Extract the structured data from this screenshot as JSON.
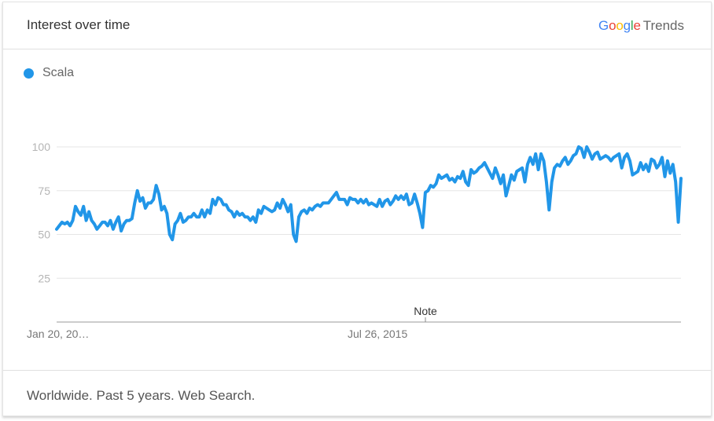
{
  "header": {
    "title": "Interest over time",
    "logo": {
      "letters": [
        {
          "ch": "G",
          "color": "#4285F4"
        },
        {
          "ch": "o",
          "color": "#EA4335"
        },
        {
          "ch": "o",
          "color": "#FBBC05"
        },
        {
          "ch": "g",
          "color": "#4285F4"
        },
        {
          "ch": "l",
          "color": "#34A853"
        },
        {
          "ch": "e",
          "color": "#EA4335"
        }
      ],
      "suffix": "Trends"
    }
  },
  "legend": {
    "label": "Scala",
    "color": "#2196E8"
  },
  "footer": {
    "text": "Worldwide. Past 5 years. Web Search."
  },
  "chart_data": {
    "type": "line",
    "ylim": [
      0,
      100
    ],
    "yticks": [
      25,
      50,
      75,
      100
    ],
    "xtick_labels": [
      "Jan 20, 20…",
      "Jul 26, 2015"
    ],
    "annotation": "Note",
    "grid": true,
    "series": [
      {
        "name": "Scala",
        "color": "#2196E8",
        "values": [
          53,
          55,
          57,
          56,
          57,
          55,
          58,
          66,
          63,
          61,
          66,
          58,
          63,
          58,
          56,
          53,
          55,
          57,
          57,
          55,
          58,
          53,
          57,
          60,
          52,
          56,
          58,
          58,
          59,
          68,
          75,
          69,
          71,
          65,
          68,
          68,
          70,
          78,
          73,
          64,
          66,
          62,
          50,
          47,
          56,
          58,
          62,
          57,
          58,
          60,
          60,
          62,
          60,
          60,
          64,
          60,
          64,
          62,
          70,
          67,
          71,
          70,
          67,
          67,
          64,
          63,
          60,
          63,
          61,
          62,
          60,
          60,
          58,
          60,
          57,
          64,
          62,
          66,
          65,
          64,
          63,
          64,
          68,
          65,
          70,
          67,
          63,
          67,
          50,
          46,
          60,
          63,
          64,
          62,
          65,
          64,
          66,
          67,
          66,
          68,
          68,
          68,
          70,
          72,
          74,
          70,
          70,
          70,
          67,
          71,
          70,
          70,
          68,
          70,
          68,
          70,
          67,
          68,
          67,
          66,
          70,
          66,
          69,
          70,
          67,
          69,
          72,
          70,
          72,
          70,
          73,
          67,
          68,
          73,
          68,
          62,
          54,
          74,
          75,
          78,
          77,
          79,
          84,
          82,
          83,
          84,
          81,
          82,
          80,
          83,
          82,
          86,
          80,
          78,
          87,
          85,
          86,
          88,
          89,
          91,
          88,
          85,
          82,
          88,
          84,
          79,
          84,
          72,
          78,
          84,
          81,
          86,
          87,
          88,
          80,
          90,
          94,
          90,
          96,
          87,
          96,
          92,
          80,
          64,
          80,
          88,
          90,
          89,
          92,
          94,
          90,
          92,
          95,
          96,
          100,
          99,
          94,
          100,
          97,
          93,
          96,
          97,
          93,
          94,
          95,
          94,
          92,
          94,
          95,
          96,
          88,
          94,
          96,
          92,
          84,
          85,
          86,
          91,
          87,
          90,
          86,
          93,
          92,
          88,
          90,
          94,
          83,
          92,
          85,
          90,
          80,
          57,
          82
        ],
        "ticks_at_index": [
          0,
          121
        ]
      }
    ]
  }
}
